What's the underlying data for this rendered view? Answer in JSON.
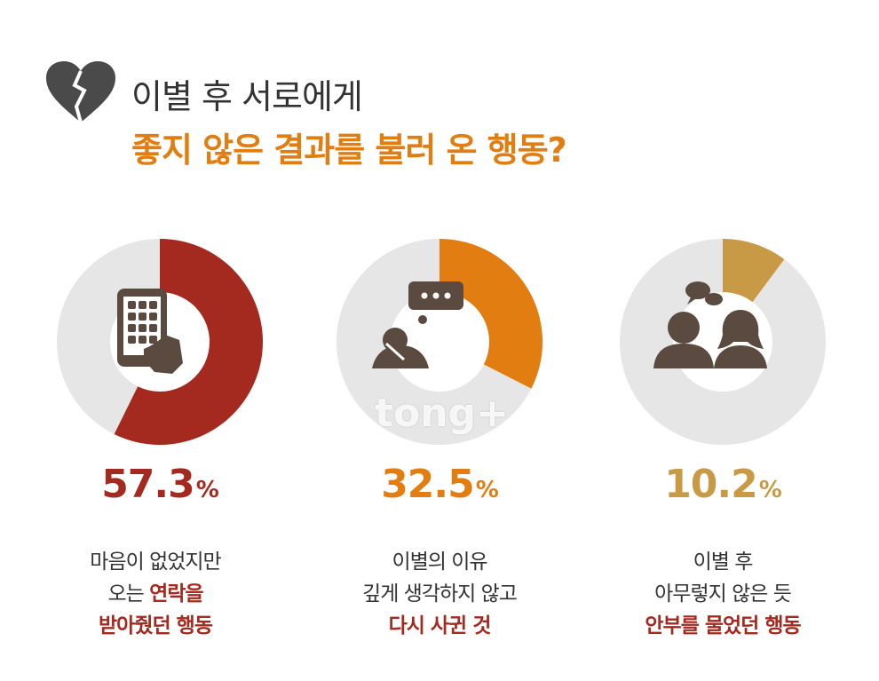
{
  "header": {
    "title_line1": "이별 후 서로에게",
    "title_line2": "좋지 않은 결과를 불러 온 행동?",
    "icon": "broken-heart-icon"
  },
  "colors": {
    "track": "#e6e6e6",
    "series": [
      "#a42a20",
      "#e27d12",
      "#c99a45"
    ],
    "icon": "#5a4a40"
  },
  "chart_data": {
    "type": "pie",
    "variant": "donut",
    "title": "이별 후 서로에게 좋지 않은 결과를 불러 온 행동?",
    "slices": [
      {
        "value": 57.3,
        "label": "57.3%",
        "caption": [
          "마음이 없었지만",
          "오는 ",
          "연락을",
          "받아줬던 행동"
        ],
        "icon": "smartphone-icon"
      },
      {
        "value": 32.5,
        "label": "32.5%",
        "caption": [
          "이별의 이유",
          "깊게 생각하지 않고",
          "다시 사귄 것"
        ],
        "icon": "thinking-person-icon"
      },
      {
        "value": 10.2,
        "label": "10.2%",
        "caption": [
          "이별 후",
          "아무렇지 않은 듯",
          "안부를 물었던 행동"
        ],
        "icon": "couple-chat-icon"
      }
    ]
  },
  "watermark": "tong+"
}
